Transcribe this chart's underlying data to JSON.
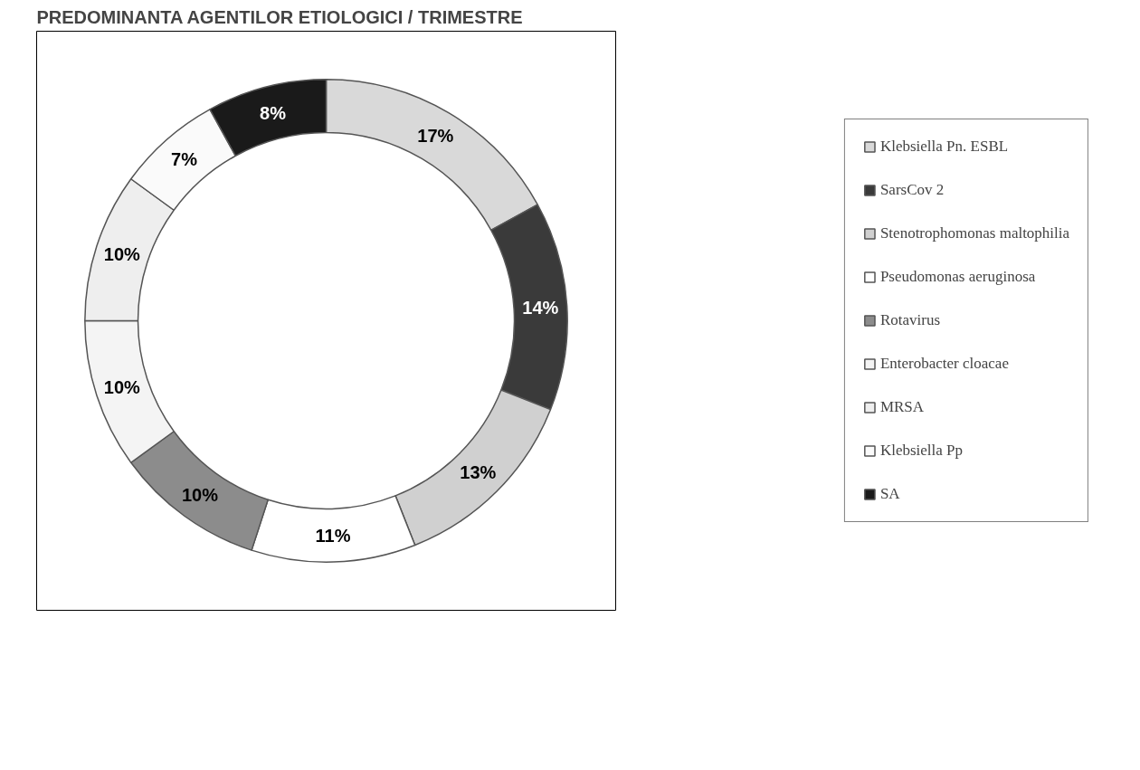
{
  "chart_data": {
    "type": "donut",
    "title": "PREDOMINANTA AGENTILOR ETIOLOGICI / TRIMESTRE",
    "categories": [
      "Klebsiella Pn. ESBL",
      "SarsCov 2",
      "Stenotrophomonas maltophilia",
      "Pseudomonas aeruginosa",
      "Rotavirus",
      "Enterobacter cloacae",
      "MRSA",
      "Klebsiella Pp",
      "SA"
    ],
    "values": [
      17,
      14,
      13,
      11,
      10,
      10,
      10,
      7,
      8
    ],
    "colors": [
      "#d9d9d9",
      "#3a3a3a",
      "#d0d0d0",
      "#ffffff",
      "#8c8c8c",
      "#f4f4f4",
      "#eeeeee",
      "#fafafa",
      "#1a1a1a"
    ],
    "value_labels": [
      "17%",
      "14%",
      "13%",
      "11%",
      "10%",
      "10%",
      "10%",
      "7%",
      "8%"
    ],
    "legend": "right"
  }
}
